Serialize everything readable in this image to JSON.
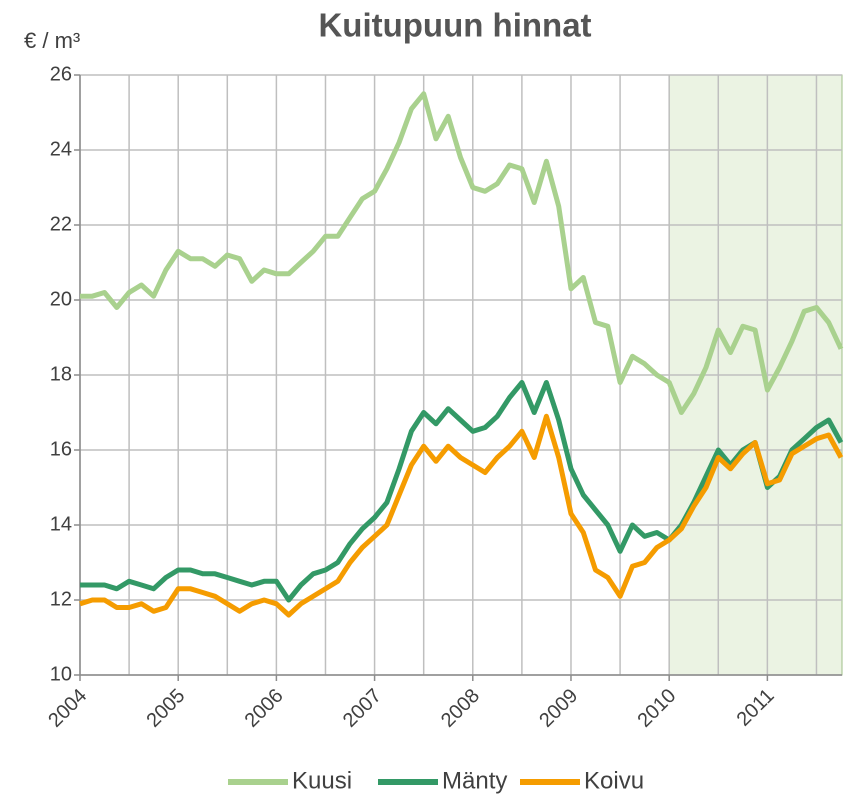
{
  "chart_data": {
    "type": "line",
    "title": "Kuitupuun hinnat",
    "y_label": "€ / m³",
    "x": [
      2004,
      2004.125,
      2004.25,
      2004.375,
      2004.5,
      2004.625,
      2004.75,
      2004.875,
      2005,
      2005.125,
      2005.25,
      2005.375,
      2005.5,
      2005.625,
      2005.75,
      2005.875,
      2006,
      2006.125,
      2006.25,
      2006.375,
      2006.5,
      2006.625,
      2006.75,
      2006.875,
      2007,
      2007.125,
      2007.25,
      2007.375,
      2007.5,
      2007.625,
      2007.75,
      2007.875,
      2008,
      2008.125,
      2008.25,
      2008.375,
      2008.5,
      2008.625,
      2008.75,
      2008.875,
      2009,
      2009.125,
      2009.25,
      2009.375,
      2009.5,
      2009.625,
      2009.75,
      2009.875,
      2010,
      2010.125,
      2010.25,
      2010.375,
      2010.5,
      2010.625,
      2010.75,
      2010.875,
      2011,
      2011.125,
      2011.25,
      2011.375,
      2011.5,
      2011.625,
      2011.75
    ],
    "series": [
      {
        "name": "Kuusi",
        "color": "#a9d18e",
        "values": [
          20.1,
          20.1,
          20.2,
          19.8,
          20.2,
          20.4,
          20.1,
          20.8,
          21.3,
          21.1,
          21.1,
          20.9,
          21.2,
          21.1,
          20.5,
          20.8,
          20.7,
          20.7,
          21.0,
          21.3,
          21.7,
          21.7,
          22.2,
          22.7,
          22.9,
          23.5,
          24.2,
          25.1,
          25.5,
          24.3,
          24.9,
          23.8,
          23.0,
          22.9,
          23.1,
          23.6,
          23.5,
          22.6,
          23.7,
          22.5,
          20.3,
          20.6,
          19.4,
          19.3,
          17.8,
          18.5,
          18.3,
          18.0,
          17.8,
          17.0,
          17.5,
          18.2,
          19.2,
          18.6,
          19.3,
          19.2,
          17.6,
          18.2,
          18.9,
          19.7,
          19.8,
          19.4,
          18.7
        ]
      },
      {
        "name": "Mänty",
        "color": "#339966",
        "values": [
          12.4,
          12.4,
          12.4,
          12.3,
          12.5,
          12.4,
          12.3,
          12.6,
          12.8,
          12.8,
          12.7,
          12.7,
          12.6,
          12.5,
          12.4,
          12.5,
          12.5,
          12.0,
          12.4,
          12.7,
          12.8,
          13.0,
          13.5,
          13.9,
          14.2,
          14.6,
          15.5,
          16.5,
          17.0,
          16.7,
          17.1,
          16.8,
          16.5,
          16.6,
          16.9,
          17.4,
          17.8,
          17.0,
          17.8,
          16.8,
          15.5,
          14.8,
          14.4,
          14.0,
          13.3,
          14.0,
          13.7,
          13.8,
          13.6,
          14.0,
          14.6,
          15.3,
          16.0,
          15.6,
          16.0,
          16.2,
          15.0,
          15.3,
          16.0,
          16.3,
          16.6,
          16.8,
          16.2
        ]
      },
      {
        "name": "Koivu",
        "color": "#f59c00",
        "values": [
          11.9,
          12.0,
          12.0,
          11.8,
          11.8,
          11.9,
          11.7,
          11.8,
          12.3,
          12.3,
          12.2,
          12.1,
          11.9,
          11.7,
          11.9,
          12.0,
          11.9,
          11.6,
          11.9,
          12.1,
          12.3,
          12.5,
          13.0,
          13.4,
          13.7,
          14.0,
          14.8,
          15.6,
          16.1,
          15.7,
          16.1,
          15.8,
          15.6,
          15.4,
          15.8,
          16.1,
          16.5,
          15.8,
          16.9,
          15.8,
          14.3,
          13.8,
          12.8,
          12.6,
          12.1,
          12.9,
          13.0,
          13.4,
          13.6,
          13.9,
          14.5,
          15.0,
          15.8,
          15.5,
          15.9,
          16.2,
          15.1,
          15.2,
          15.9,
          16.1,
          16.3,
          16.4,
          15.8
        ]
      }
    ],
    "xlim": [
      2004,
      2011.76
    ],
    "xticks": [
      2004,
      2005,
      2006,
      2007,
      2008,
      2009,
      2010,
      2011
    ],
    "x_minor_grid": [
      2004.5,
      2005.5,
      2006.5,
      2007.5,
      2008.5,
      2009.5,
      2010.5,
      2011.5
    ],
    "ylim": [
      10,
      26
    ],
    "yticks": [
      10,
      12,
      14,
      16,
      18,
      20,
      22,
      24,
      26
    ],
    "grid": true,
    "legend": "bottom",
    "shaded_range": [
      2010,
      2011.76
    ],
    "shaded_color": "#ebf3e3"
  }
}
